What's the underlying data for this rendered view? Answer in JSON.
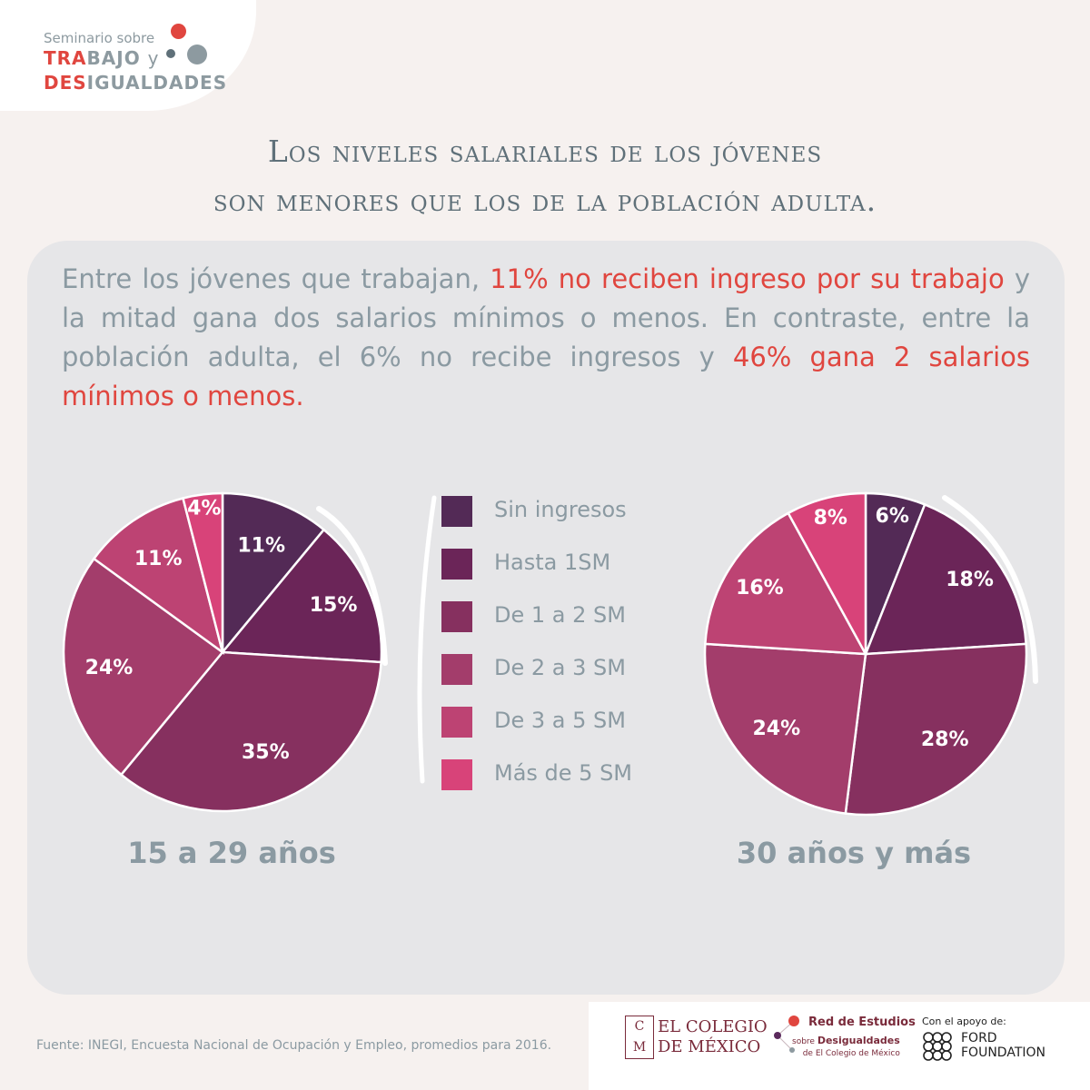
{
  "branding": {
    "kicker": "Seminario sobre",
    "line1_accent": "TRA",
    "line1_rest": "BAJO",
    "line1_y": "y",
    "line2_accent": "DES",
    "line2_rest": "IGUALDADES"
  },
  "headline": {
    "line1": "Los niveles salariales de los jóvenes",
    "line2": "son menores que los de la población adulta."
  },
  "intro": {
    "part1": "Entre los jóvenes que trabajan,",
    "highlight1": "11% no reciben ingreso por su trabajo",
    "part2": "y la mitad gana dos salarios mínimos o menos. En contraste, entre la población adulta, el 6% no recibe ingresos y",
    "highlight2": "46% gana 2 salarios mínimos o menos."
  },
  "colors": {
    "Sin ingresos": "#532a56",
    "Hasta 1SM": "#6b2558",
    "De 1 a 2 SM": "#86305f",
    "De 2 a 3 SM": "#a33d6b",
    "De 3 a 5 SM": "#bd4373",
    "Más de 5 SM": "#d84379",
    "highlight": "#e0463f",
    "text": "#8b9aa2"
  },
  "chart_data": [
    {
      "type": "pie",
      "title": "15 a 29 años",
      "categories": [
        "Sin ingresos",
        "Hasta 1SM",
        "De 1 a 2 SM",
        "De 2 a 3 SM",
        "De 3 a 5 SM",
        "Más de 5 SM"
      ],
      "values": [
        11,
        15,
        35,
        24,
        11,
        4
      ],
      "labels": [
        "11%",
        "15%",
        "35%",
        "24%",
        "11%",
        "4%"
      ],
      "legend": "center"
    },
    {
      "type": "pie",
      "title": "30 años y más",
      "categories": [
        "Sin ingresos",
        "Hasta 1SM",
        "De 1 a 2 SM",
        "De 2 a 3 SM",
        "De 3 a 5 SM",
        "Más de 5 SM"
      ],
      "values": [
        6,
        18,
        28,
        24,
        16,
        8
      ],
      "labels": [
        "6%",
        "18%",
        "28%",
        "24%",
        "16%",
        "8%"
      ],
      "legend": "center"
    }
  ],
  "legend": [
    {
      "label": "Sin ingresos"
    },
    {
      "label": "Hasta 1SM"
    },
    {
      "label": "De 1 a 2 SM"
    },
    {
      "label": "De 2 a 3 SM"
    },
    {
      "label": "De 3 a 5 SM"
    },
    {
      "label": "Más de 5 SM"
    }
  ],
  "footer": {
    "source": "Fuente: INEGI, Encuesta Nacional de Ocupación y Empleo, promedios para 2016.",
    "colmex_mark_top": "C",
    "colmex_mark_bottom": "M",
    "colmex_line1": "EL COLEGIO",
    "colmex_line2": "DE MÉXICO",
    "red_title": "Red de Estudios",
    "red_sub_pre": "sobre",
    "red_sub_bold": "Desigualdades",
    "red_sub_line2": "de El Colegio de México",
    "ford_kicker": "Con el apoyo de:",
    "ford_line1": "FORD",
    "ford_line2": "FOUNDATION"
  }
}
